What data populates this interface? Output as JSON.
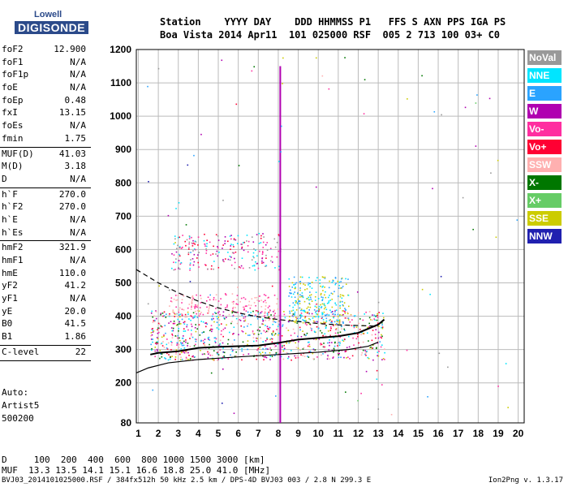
{
  "logo": {
    "top": "Lowell",
    "bottom": "DIGISONDE"
  },
  "header": {
    "line1": "Station    YYYY DAY    DDD HHMMSS P1   FFS S AXN PPS IGA PS",
    "line2": "Boa Vista 2014 Apr11  101 025000 RSF  005 2 713 100 03+ C0"
  },
  "params": [
    {
      "k": "foF2",
      "v": "12.900"
    },
    {
      "k": "foF1",
      "v": "N/A"
    },
    {
      "k": "foF1p",
      "v": "N/A"
    },
    {
      "k": "foE",
      "v": "N/A"
    },
    {
      "k": "foEp",
      "v": "0.48"
    },
    {
      "k": "fxI",
      "v": "13.15"
    },
    {
      "k": "foEs",
      "v": "N/A"
    },
    {
      "k": "fmin",
      "v": "1.75"
    },
    {
      "k": "MUF(D)",
      "v": "41.03"
    },
    {
      "k": "M(D)",
      "v": "3.18"
    },
    {
      "k": "D",
      "v": "N/A"
    },
    {
      "k": "h`F",
      "v": "270.0"
    },
    {
      "k": "h`F2",
      "v": "270.0"
    },
    {
      "k": "h`E",
      "v": "N/A"
    },
    {
      "k": "h`Es",
      "v": "N/A"
    },
    {
      "k": "hmF2",
      "v": "321.9"
    },
    {
      "k": "hmF1",
      "v": "N/A"
    },
    {
      "k": "hmE",
      "v": "110.0"
    },
    {
      "k": "yF2",
      "v": "41.2"
    },
    {
      "k": "yF1",
      "v": "N/A"
    },
    {
      "k": "yE",
      "v": "20.0"
    },
    {
      "k": "B0",
      "v": "41.5"
    },
    {
      "k": "B1",
      "v": "1.86"
    },
    {
      "k": "C-level",
      "v": "22"
    }
  ],
  "auto": {
    "l1": "Auto:",
    "l2": "Artist5",
    "l3": "500200"
  },
  "legend": [
    {
      "label": "NoVal",
      "color": "#999999"
    },
    {
      "label": "NNE",
      "color": "#00e5ff"
    },
    {
      "label": "E",
      "color": "#2aa3ff"
    },
    {
      "label": "W",
      "color": "#b000b0"
    },
    {
      "label": "Vo-",
      "color": "#ff2ea0"
    },
    {
      "label": "Vo+",
      "color": "#ff0033"
    },
    {
      "label": "SSW",
      "color": "#ffb0b0"
    },
    {
      "label": "X-",
      "color": "#007700"
    },
    {
      "label": "X+",
      "color": "#66cc66"
    },
    {
      "label": "SSE",
      "color": "#cccc00"
    },
    {
      "label": "NNW",
      "color": "#2020b0"
    }
  ],
  "bottom": {
    "d_line": "D     100  200  400  600  800 1000 1500 3000 [km]",
    "muf_line": "MUF  13.3 13.5 14.1 15.1 16.6 18.8 25.0 41.0 [MHz]"
  },
  "footer": {
    "left": "BVJ03_2014101025000.RSF / 384fx512h 50 kHz 2.5 km / DPS-4D BVJ03 003 / 2.8 N 299.3 E",
    "right": "Ion2Png v. 1.3.17"
  },
  "chart_data": {
    "type": "scatter",
    "x_ticks": [
      1,
      2,
      3,
      4,
      5,
      6,
      7,
      8,
      9,
      10,
      11,
      12,
      13,
      14,
      15,
      16,
      17,
      18,
      19,
      20
    ],
    "y_ticks": [
      80,
      200,
      300,
      400,
      500,
      600,
      700,
      800,
      900,
      1000,
      1100,
      1200
    ],
    "xlim": [
      0.9,
      20.3
    ],
    "ylim": [
      80,
      1200
    ],
    "grid": true,
    "legend_position": "right",
    "profile_solid": {
      "x": [
        0.9,
        1.5,
        2.5,
        4,
        6,
        8,
        10,
        11.5,
        12.5,
        13.0
      ],
      "y": [
        230,
        245,
        260,
        270,
        278,
        285,
        292,
        300,
        310,
        322
      ]
    },
    "profile_dashed": {
      "x": [
        0.9,
        2,
        3,
        4,
        5,
        6,
        7,
        8,
        9,
        10,
        11,
        12,
        13
      ],
      "y": [
        540,
        500,
        470,
        445,
        425,
        410,
        398,
        390,
        384,
        378,
        374,
        372,
        370
      ]
    },
    "trace_low": {
      "x": [
        1.6,
        2,
        3,
        4,
        5,
        6,
        7,
        8,
        9,
        10,
        11,
        12,
        13,
        13.3
      ],
      "y": [
        285,
        290,
        295,
        305,
        308,
        310,
        312,
        320,
        330,
        335,
        340,
        350,
        375,
        390
      ]
    }
  }
}
